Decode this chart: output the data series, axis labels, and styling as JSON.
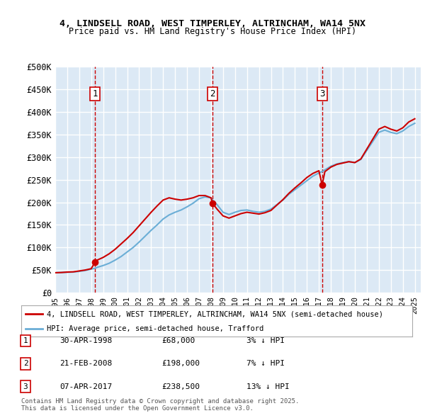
{
  "title_line1": "4, LINDSELL ROAD, WEST TIMPERLEY, ALTRINCHAM, WA14 5NX",
  "title_line2": "Price paid vs. HM Land Registry's House Price Index (HPI)",
  "ylabel_ticks": [
    "£0",
    "£50K",
    "£100K",
    "£150K",
    "£200K",
    "£250K",
    "£300K",
    "£350K",
    "£400K",
    "£450K",
    "£500K"
  ],
  "ytick_values": [
    0,
    50000,
    100000,
    150000,
    200000,
    250000,
    300000,
    350000,
    400000,
    450000,
    500000
  ],
  "xlim_start": 1995.0,
  "xlim_end": 2025.5,
  "ylim_min": 0,
  "ylim_max": 500000,
  "background_color": "#dce9f5",
  "plot_bg_color": "#dce9f5",
  "grid_color": "#ffffff",
  "hpi_color": "#6baed6",
  "price_color": "#cc0000",
  "sale_marker_color": "#cc0000",
  "dashed_line_color": "#cc0000",
  "legend_label_price": "4, LINDSELL ROAD, WEST TIMPERLEY, ALTRINCHAM, WA14 5NX (semi-detached house)",
  "legend_label_hpi": "HPI: Average price, semi-detached house, Trafford",
  "sales": [
    {
      "num": 1,
      "date_x": 1998.33,
      "price": 68000,
      "label": "30-APR-1998",
      "pct": "3%",
      "dir": "↓"
    },
    {
      "num": 2,
      "date_x": 2008.12,
      "price": 198000,
      "label": "21-FEB-2008",
      "pct": "7%",
      "dir": "↓"
    },
    {
      "num": 3,
      "date_x": 2017.27,
      "price": 238500,
      "label": "07-APR-2017",
      "pct": "13%",
      "dir": "↓"
    }
  ],
  "footer_text": "Contains HM Land Registry data © Crown copyright and database right 2025.\nThis data is licensed under the Open Government Licence v3.0.",
  "hpi_x": [
    1995.0,
    1995.5,
    1996.0,
    1996.5,
    1997.0,
    1997.5,
    1998.0,
    1998.33,
    1998.5,
    1999.0,
    1999.5,
    2000.0,
    2000.5,
    2001.0,
    2001.5,
    2002.0,
    2002.5,
    2003.0,
    2003.5,
    2004.0,
    2004.5,
    2005.0,
    2005.5,
    2006.0,
    2006.5,
    2007.0,
    2007.5,
    2008.0,
    2008.12,
    2008.5,
    2009.0,
    2009.5,
    2010.0,
    2010.5,
    2011.0,
    2011.5,
    2012.0,
    2012.5,
    2013.0,
    2013.5,
    2014.0,
    2014.5,
    2015.0,
    2015.5,
    2016.0,
    2016.5,
    2017.0,
    2017.27,
    2017.5,
    2018.0,
    2018.5,
    2019.0,
    2019.5,
    2020.0,
    2020.5,
    2021.0,
    2021.5,
    2022.0,
    2022.5,
    2023.0,
    2023.5,
    2024.0,
    2024.5,
    2025.0
  ],
  "hpi_y": [
    44000,
    44500,
    45000,
    45500,
    47000,
    49000,
    52000,
    54000,
    56000,
    60000,
    65000,
    72000,
    80000,
    90000,
    100000,
    112000,
    125000,
    138000,
    150000,
    163000,
    172000,
    178000,
    183000,
    190000,
    198000,
    208000,
    212000,
    210000,
    205000,
    195000,
    178000,
    173000,
    178000,
    182000,
    183000,
    180000,
    178000,
    180000,
    185000,
    195000,
    205000,
    218000,
    228000,
    238000,
    248000,
    258000,
    265000,
    268000,
    272000,
    280000,
    285000,
    288000,
    290000,
    288000,
    295000,
    315000,
    335000,
    355000,
    360000,
    355000,
    352000,
    358000,
    368000,
    375000
  ],
  "price_x": [
    1995.0,
    1995.5,
    1996.0,
    1996.5,
    1997.0,
    1997.5,
    1998.0,
    1998.33,
    1998.5,
    1999.0,
    1999.5,
    2000.0,
    2000.5,
    2001.0,
    2001.5,
    2002.0,
    2002.5,
    2003.0,
    2003.5,
    2004.0,
    2004.5,
    2005.0,
    2005.5,
    2006.0,
    2006.5,
    2007.0,
    2007.5,
    2008.0,
    2008.12,
    2008.5,
    2009.0,
    2009.5,
    2010.0,
    2010.5,
    2011.0,
    2011.5,
    2012.0,
    2012.5,
    2013.0,
    2013.5,
    2014.0,
    2014.5,
    2015.0,
    2015.5,
    2016.0,
    2016.5,
    2017.0,
    2017.27,
    2017.5,
    2018.0,
    2018.5,
    2019.0,
    2019.5,
    2020.0,
    2020.5,
    2021.0,
    2021.5,
    2022.0,
    2022.5,
    2023.0,
    2023.5,
    2024.0,
    2024.5,
    2025.0
  ],
  "price_y": [
    44000,
    44500,
    45500,
    46000,
    48000,
    50000,
    53000,
    68000,
    72000,
    78000,
    86000,
    96000,
    108000,
    120000,
    133000,
    148000,
    163000,
    178000,
    192000,
    205000,
    210000,
    207000,
    205000,
    207000,
    210000,
    215000,
    215000,
    210000,
    198000,
    185000,
    170000,
    165000,
    170000,
    175000,
    178000,
    176000,
    174000,
    177000,
    182000,
    194000,
    206000,
    220000,
    232000,
    243000,
    255000,
    264000,
    270000,
    238500,
    268000,
    278000,
    284000,
    287000,
    290000,
    288000,
    296000,
    318000,
    340000,
    362000,
    368000,
    362000,
    358000,
    365000,
    378000,
    385000
  ]
}
